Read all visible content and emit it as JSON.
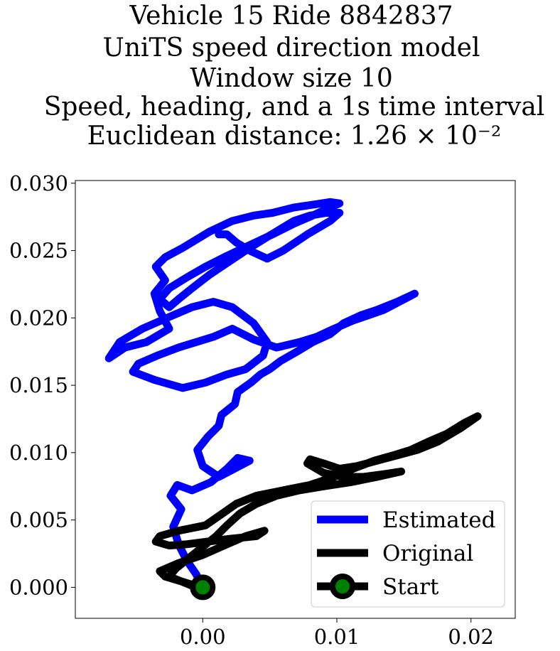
{
  "chart_data": {
    "type": "line",
    "title_lines": [
      "Vehicle 15 Ride 8842837",
      "UniTS speed direction model",
      "Window size 10",
      "Speed, heading, and a 1s time interval",
      "Euclidean distance: 1.26 × 10⁻²"
    ],
    "xlabel": "",
    "ylabel": "",
    "xlim": [
      -0.0095,
      0.0233
    ],
    "ylim": [
      -0.0023,
      0.0302
    ],
    "xticks": [
      {
        "value": 0.0,
        "label": "0.00"
      },
      {
        "value": 0.01,
        "label": "0.01"
      },
      {
        "value": 0.02,
        "label": "0.02"
      }
    ],
    "yticks": [
      {
        "value": 0.0,
        "label": "0.000"
      },
      {
        "value": 0.005,
        "label": "0.005"
      },
      {
        "value": 0.01,
        "label": "0.010"
      },
      {
        "value": 0.015,
        "label": "0.015"
      },
      {
        "value": 0.02,
        "label": "0.020"
      },
      {
        "value": 0.025,
        "label": "0.025"
      },
      {
        "value": 0.03,
        "label": "0.030"
      }
    ],
    "grid": false,
    "legend": {
      "placement": "lower-right"
    },
    "series": [
      {
        "name": "Estimated",
        "color": "#0000ff",
        "x": [
          0.0,
          -0.0005,
          -0.0012,
          -0.0018,
          -0.0022,
          -0.0016,
          -0.0024,
          -0.0019,
          -0.0008,
          0.0006,
          0.0018,
          0.0026,
          0.0035,
          0.0012,
          0.0,
          -0.0004,
          0.0004,
          0.0012,
          0.0014,
          0.0024,
          0.0026,
          0.0036,
          0.0043,
          0.005,
          0.0058,
          0.0072,
          0.0082,
          0.0095,
          0.0105,
          0.0118,
          0.013,
          0.0145,
          0.0158,
          0.0135,
          0.0112,
          0.0098,
          0.0085,
          0.0072,
          0.0055,
          0.0038,
          0.0022,
          0.0008,
          -0.0018,
          -0.0034,
          -0.0048,
          -0.0052,
          -0.0036,
          -0.0015,
          0.0002,
          0.0018,
          0.0032,
          0.0045,
          0.0048,
          0.0038,
          0.0022,
          0.0008,
          -0.0008,
          -0.0022,
          -0.0045,
          -0.0062,
          -0.007,
          -0.0058,
          -0.0042,
          -0.0025,
          -0.0032,
          -0.0036,
          -0.0028,
          -0.0035,
          -0.0028,
          -0.0015,
          -0.0005,
          0.0005,
          0.0022,
          0.0038,
          0.0052,
          0.0068,
          0.0082,
          0.0095,
          0.0102,
          0.0095,
          0.0082,
          0.0068,
          0.0052,
          0.0035,
          0.0018,
          0.0002,
          -0.0012,
          -0.0025,
          -0.0032,
          -0.0025,
          -0.0018,
          -0.0008,
          0.0005,
          0.002,
          0.0035,
          0.0048,
          0.0058,
          0.0068,
          0.008,
          0.0092,
          0.0102,
          0.0095,
          0.0078,
          0.006,
          0.0048,
          0.0035,
          0.0025,
          0.0018,
          0.0012
        ],
        "y": [
          0.0,
          0.001,
          0.002,
          0.0032,
          0.0045,
          0.0058,
          0.0068,
          0.0076,
          0.0072,
          0.0078,
          0.0088,
          0.0096,
          0.0094,
          0.0082,
          0.009,
          0.0102,
          0.0112,
          0.012,
          0.0128,
          0.0136,
          0.0145,
          0.0152,
          0.0158,
          0.0162,
          0.0168,
          0.0176,
          0.0182,
          0.0188,
          0.0196,
          0.0202,
          0.0206,
          0.0212,
          0.0218,
          0.0206,
          0.0198,
          0.0192,
          0.0186,
          0.0182,
          0.0178,
          0.0184,
          0.0192,
          0.0186,
          0.0178,
          0.0172,
          0.0166,
          0.016,
          0.0154,
          0.0148,
          0.0152,
          0.0158,
          0.0162,
          0.0172,
          0.0182,
          0.0196,
          0.0208,
          0.0212,
          0.0208,
          0.0202,
          0.0192,
          0.0182,
          0.017,
          0.0178,
          0.0182,
          0.0192,
          0.0205,
          0.0218,
          0.0228,
          0.0238,
          0.0245,
          0.0252,
          0.0258,
          0.0264,
          0.0272,
          0.0276,
          0.0278,
          0.0282,
          0.0284,
          0.0286,
          0.0285,
          0.0282,
          0.0276,
          0.027,
          0.0262,
          0.0254,
          0.0246,
          0.0238,
          0.023,
          0.0222,
          0.0214,
          0.0208,
          0.0214,
          0.0222,
          0.0232,
          0.0242,
          0.0252,
          0.026,
          0.0266,
          0.0272,
          0.0276,
          0.0278,
          0.0278,
          0.0272,
          0.0262,
          0.025,
          0.0244,
          0.025,
          0.0256,
          0.0262,
          0.0262
        ]
      },
      {
        "name": "Original",
        "color": "#000000",
        "x": [
          0.0,
          -0.0008,
          -0.0018,
          -0.0028,
          -0.0032,
          -0.0018,
          0.0,
          0.0018,
          0.0032,
          0.0046,
          0.004,
          0.002,
          0.0004,
          -0.0012,
          -0.0025,
          -0.0035,
          -0.0032,
          -0.0018,
          0.0002,
          0.0015,
          0.0025,
          0.004,
          0.006,
          0.008,
          0.0098,
          0.0112,
          0.0128,
          0.0142,
          0.0155,
          0.0168,
          0.0182,
          0.0195,
          0.0205,
          0.0192,
          0.0175,
          0.016,
          0.0145,
          0.013,
          0.0115,
          0.0102,
          0.009,
          0.008,
          0.0078,
          0.009,
          0.0105,
          0.012,
          0.0135,
          0.0148,
          0.013,
          0.011,
          0.009,
          0.0072,
          0.0055,
          0.004,
          0.0028,
          0.0018,
          0.001,
          0.0,
          -0.001,
          -0.002,
          -0.0025,
          -0.0015,
          -0.0005,
          0.0005
        ],
        "y": [
          0.0,
          0.0002,
          0.0005,
          0.0008,
          0.0012,
          0.0018,
          0.0024,
          0.0032,
          0.0038,
          0.0042,
          0.0038,
          0.0036,
          0.0034,
          0.0032,
          0.0031,
          0.0034,
          0.0038,
          0.0042,
          0.0046,
          0.0055,
          0.0062,
          0.0068,
          0.0072,
          0.0076,
          0.0082,
          0.0088,
          0.0094,
          0.0098,
          0.0102,
          0.0108,
          0.0114,
          0.0122,
          0.0127,
          0.0118,
          0.0108,
          0.0102,
          0.0098,
          0.0094,
          0.009,
          0.0088,
          0.0092,
          0.0095,
          0.0092,
          0.0085,
          0.0082,
          0.0082,
          0.0084,
          0.0086,
          0.0082,
          0.0078,
          0.0075,
          0.0072,
          0.0068,
          0.0062,
          0.0055,
          0.0046,
          0.0038,
          0.003,
          0.0022,
          0.0014,
          0.0008,
          0.0004,
          0.0,
          -0.0004
        ]
      }
    ],
    "start_marker": {
      "name": "Start",
      "x": 0.0,
      "y": 0.0,
      "edge_color": "#000000",
      "face_color": "#008000"
    }
  }
}
